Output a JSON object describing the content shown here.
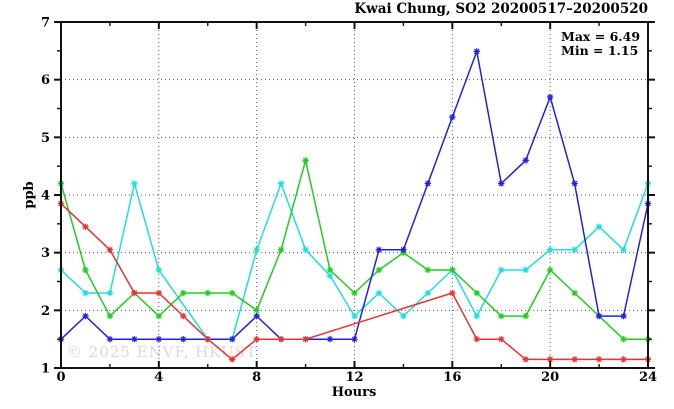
{
  "title": "Kwai Chung, SO2 20200517–20200520",
  "annotation": {
    "max_label": "Max = 6.49",
    "min_label": "Min = 1.15"
  },
  "watermark": "© 2025  ENVF, HKUST",
  "colors": {
    "axis": "#111111",
    "grid": "#555555",
    "cyan_series": "#22dddd",
    "green_series": "#22cc22",
    "blue_series": "#2222dd",
    "red_series": "#e63333"
  },
  "chart_data": {
    "type": "line",
    "title": "Kwai Chung, SO2 20200517–20200520",
    "xlabel": "Hours",
    "ylabel": "ppb",
    "xlim": [
      0,
      24
    ],
    "ylim": [
      1,
      7
    ],
    "x_major_ticks": [
      0,
      4,
      8,
      12,
      16,
      20,
      24
    ],
    "x_minor_step": 2,
    "y_major_ticks": [
      1,
      2,
      3,
      4,
      5,
      6,
      7
    ],
    "y_minor_step": 0.5,
    "grid": "dotted lines at major ticks (x: 4,8,12,16,20; y: 2,3,4,5,6)",
    "legend_position": "none",
    "max_value": 6.49,
    "min_value": 1.15,
    "x": [
      0,
      1,
      2,
      3,
      4,
      5,
      6,
      7,
      8,
      9,
      10,
      11,
      12,
      13,
      14,
      15,
      16,
      17,
      18,
      19,
      20,
      21,
      22,
      23,
      24
    ],
    "series": [
      {
        "name": "cyan-line",
        "color_key": "cyan_series",
        "values": [
          2.7,
          2.3,
          2.3,
          4.2,
          2.7,
          null,
          1.5,
          1.5,
          3.05,
          4.2,
          3.05,
          2.6,
          1.9,
          2.3,
          1.9,
          2.3,
          2.7,
          1.9,
          2.7,
          2.7,
          3.05,
          3.05,
          3.45,
          3.05,
          4.2
        ]
      },
      {
        "name": "green-line",
        "color_key": "green_series",
        "values": [
          4.2,
          2.7,
          1.9,
          2.3,
          1.9,
          2.3,
          2.3,
          2.3,
          2.0,
          3.05,
          4.6,
          2.7,
          2.3,
          2.7,
          3.0,
          2.7,
          2.7,
          2.3,
          1.9,
          1.9,
          2.7,
          2.3,
          1.9,
          1.5,
          1.5
        ]
      },
      {
        "name": "blue-line",
        "color_key": "blue_series",
        "values": [
          1.5,
          1.9,
          1.5,
          1.5,
          1.5,
          1.5,
          1.5,
          1.5,
          1.9,
          1.5,
          1.5,
          1.5,
          1.5,
          3.05,
          3.05,
          4.2,
          5.35,
          6.49,
          4.2,
          4.6,
          5.7,
          4.2,
          1.9,
          1.9,
          3.85
        ]
      },
      {
        "name": "red-line",
        "color_key": "red_series",
        "values": [
          3.85,
          3.45,
          3.05,
          2.3,
          2.3,
          1.9,
          1.5,
          1.15,
          1.5,
          1.5,
          1.5,
          null,
          null,
          null,
          null,
          null,
          2.3,
          1.5,
          1.5,
          1.15,
          1.15,
          1.15,
          1.15,
          1.15,
          1.15
        ]
      }
    ]
  }
}
